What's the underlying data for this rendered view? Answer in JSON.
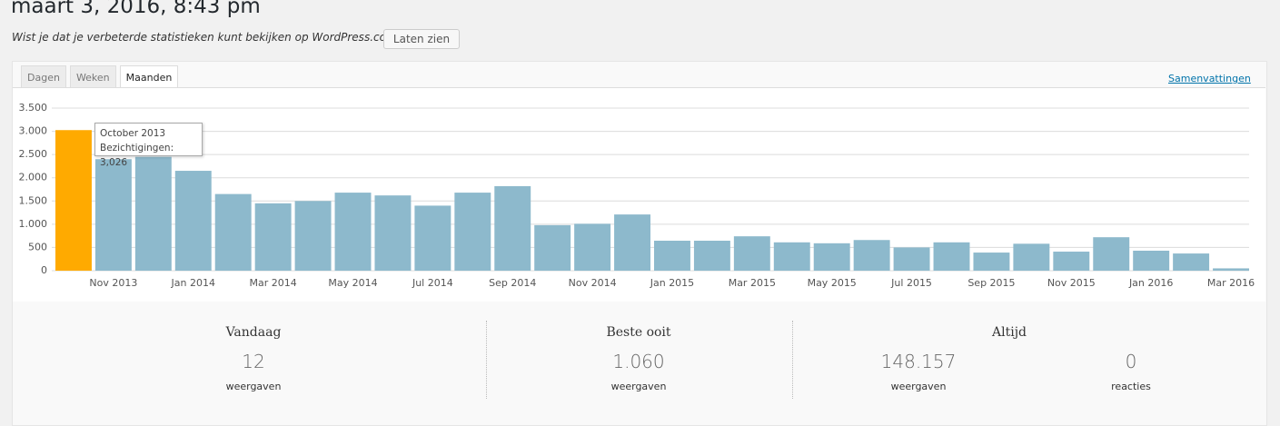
{
  "header": {
    "title": "maart 3, 2016, 8:43 pm",
    "notice": "Wist je dat je verbeterde statistieken kunt bekijken op WordPress.com?",
    "button": "Laten zien"
  },
  "tabs": {
    "items": [
      "Dagen",
      "Weken",
      "Maanden"
    ],
    "active": 2
  },
  "summaries_link": "Samenvattingen",
  "chart_data": {
    "type": "bar",
    "categories": [
      null,
      "Nov 2013",
      null,
      "Jan 2014",
      null,
      "Mar 2014",
      null,
      "May 2014",
      null,
      "Jul 2014",
      null,
      "Sep 2014",
      null,
      "Nov 2014",
      null,
      "Jan 2015",
      null,
      "Mar 2015",
      null,
      "May 2015",
      null,
      "Jul 2015",
      null,
      "Sep 2015",
      null,
      "Nov 2015",
      null,
      "Jan 2016",
      null,
      "Mar 2016"
    ],
    "values": [
      3026,
      2400,
      2450,
      2150,
      1650,
      1450,
      1500,
      1680,
      1620,
      1400,
      1680,
      1820,
      980,
      1010,
      1210,
      645,
      645,
      740,
      610,
      590,
      660,
      500,
      610,
      390,
      580,
      410,
      720,
      430,
      370,
      50
    ],
    "color": "#8db9cc",
    "highlight_color": "#ffaa00",
    "highlight_index": 0,
    "ylim": [
      0,
      3500
    ],
    "yticks": [
      0,
      500,
      {
        "value": 1000,
        "label": "1.000"
      },
      {
        "value": 1500,
        "label": "1.500"
      },
      {
        "value": 2000,
        "label": "2.000"
      },
      {
        "value": 2500,
        "label": "2.500"
      },
      {
        "value": 3000,
        "label": "3.000"
      },
      {
        "value": 3500,
        "label": "3.500"
      }
    ],
    "grid": true
  },
  "tooltip": {
    "title": "October 2013",
    "text": "Bezichtigingen: 3,026"
  },
  "stats": [
    {
      "heading": "Vandaag",
      "items": [
        {
          "value": "12",
          "label": "weergaven"
        }
      ]
    },
    {
      "heading": "Beste ooit",
      "items": [
        {
          "value": "1.060",
          "label": "weergaven"
        }
      ]
    },
    {
      "heading": "Altijd",
      "items": [
        {
          "value": "148.157",
          "label": "weergaven"
        },
        {
          "value": "0",
          "label": "reacties"
        }
      ]
    }
  ]
}
